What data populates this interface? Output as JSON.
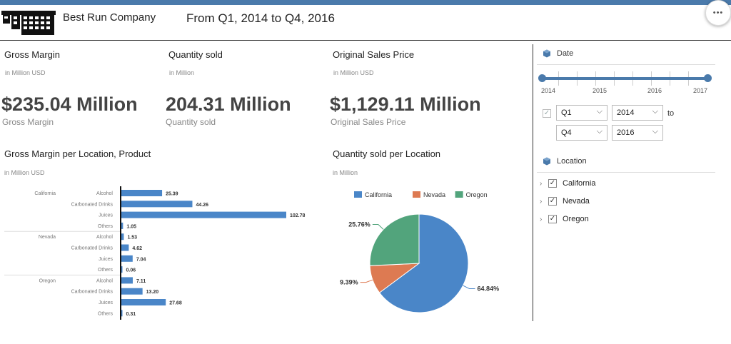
{
  "header": {
    "company": "Best Run Company",
    "period": "From Q1, 2014 to Q4, 2016",
    "more_label": "•••"
  },
  "kpis": [
    {
      "title": "Gross Margin",
      "unit": "in Million USD",
      "value": "$235.04 Million",
      "sub": "Gross Margin"
    },
    {
      "title": "Quantity sold",
      "unit": "in Million",
      "value": "204.31 Million",
      "sub": "Quantity sold"
    },
    {
      "title": "Original Sales Price",
      "unit": "in Million USD",
      "value": "$1,129.11 Million",
      "sub": "Original Sales Price"
    }
  ],
  "bar_section": {
    "title": "Gross Margin per Location, Product",
    "unit": "in Million USD"
  },
  "pie_section": {
    "title": "Quantity sold per Location",
    "unit": "in Million"
  },
  "date_panel": {
    "title": "Date",
    "years": [
      "2014",
      "2015",
      "2016",
      "2017"
    ],
    "from_quarter": "Q1",
    "from_year": "2014",
    "to_label": "to",
    "to_quarter": "Q4",
    "to_year": "2016"
  },
  "location_panel": {
    "title": "Location",
    "items": [
      "California",
      "Nevada",
      "Oregon"
    ]
  },
  "colors": {
    "accent": "#4a7aab",
    "bar": "#4a86c8",
    "california": "#4a86c8",
    "nevada": "#dd7a52",
    "oregon": "#52a47c"
  },
  "chart_data": [
    {
      "type": "bar",
      "orientation": "horizontal",
      "groups": [
        {
          "name": "California",
          "categories": [
            "Alcohol",
            "Carbonated Drinks",
            "Juices",
            "Others"
          ],
          "values": [
            25.39,
            44.26,
            102.78,
            1.05
          ],
          "labels": [
            "25.39",
            "44.26",
            "102.78",
            "1.05"
          ]
        },
        {
          "name": "Nevada",
          "categories": [
            "Alcohol",
            "Carbonated Drinks",
            "Juices",
            "Others"
          ],
          "values": [
            1.53,
            4.62,
            7.04,
            0.06
          ],
          "labels": [
            "1.53",
            "4.62",
            "7.04",
            "0.06"
          ]
        },
        {
          "name": "Oregon",
          "categories": [
            "Alcohol",
            "Carbonated Drinks",
            "Juices",
            "Others"
          ],
          "values": [
            7.11,
            13.2,
            27.68,
            0.31
          ],
          "labels": [
            "7.11",
            "13.20",
            "27.68",
            "0.31"
          ]
        }
      ]
    },
    {
      "type": "pie",
      "legend_position": "top",
      "slices": [
        {
          "name": "California",
          "value": 64.84,
          "label": "64.84%",
          "color": "#4a86c8"
        },
        {
          "name": "Nevada",
          "value": 9.39,
          "label": "9.39%",
          "color": "#dd7a52"
        },
        {
          "name": "Oregon",
          "value": 25.76,
          "label": "25.76%",
          "color": "#52a47c"
        }
      ]
    }
  ]
}
